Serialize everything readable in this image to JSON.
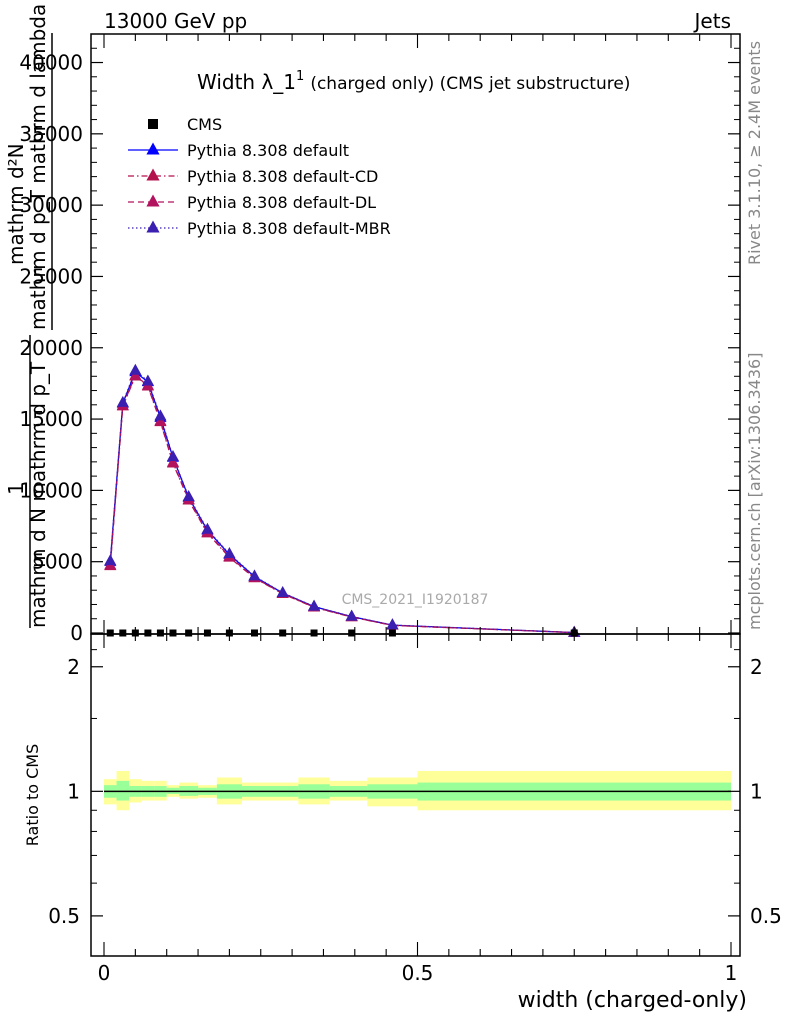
{
  "header": {
    "left": "13000 GeV pp",
    "right": "Jets"
  },
  "side_labels": {
    "rivet": "Rivet 3.1.10, ≥ 2.4M events",
    "mcplots": "mcplots.cern.ch [arXiv:1306.3436]"
  },
  "watermark": "CMS_2021_I1920187",
  "colors": {
    "cms": "#000000",
    "default": "#0000ff",
    "cd": "#b3124d",
    "dl": "#b3125e",
    "mbr": "#3a1fb0",
    "band_inner": "#99ff99",
    "band_outer": "#ffff99"
  },
  "chart_data": [
    {
      "type": "line",
      "title": "Width λ_1^1 (charged only) (CMS jet substructure)",
      "title_main": "Width λ_1",
      "title_sup": "1",
      "title_rest": "(charged only) (CMS jet substructure)",
      "ylabel_top": "mathrm d²N",
      "ylabel_bottom": "mathrm d p_T mathrm d lambda",
      "ylabel_one": "1",
      "ylabel_frac_bottom": "mathrm d N mathrm d p_T",
      "xlim": [
        0,
        1
      ],
      "ylim": [
        0,
        42000
      ],
      "y_ticks": [
        0,
        5000,
        10000,
        15000,
        20000,
        25000,
        30000,
        35000,
        40000
      ],
      "y_tick_labels": [
        "0",
        "5000",
        "10000",
        "15000",
        "20000",
        "25000",
        "30000",
        "35000",
        "40000"
      ],
      "legend": [
        {
          "name": "CMS",
          "marker": "square",
          "style": "none",
          "color_key": "cms"
        },
        {
          "name": "Pythia 8.308 default",
          "marker": "triangle",
          "style": "solid",
          "color_key": "default"
        },
        {
          "name": "Pythia 8.308 default-CD",
          "marker": "triangle",
          "style": "dashdot",
          "color_key": "cd"
        },
        {
          "name": "Pythia 8.308 default-DL",
          "marker": "triangle",
          "style": "dashed",
          "color_key": "dl"
        },
        {
          "name": "Pythia 8.308 default-MBR",
          "marker": "triangle",
          "style": "dotted",
          "color_key": "mbr"
        }
      ],
      "cms_x": [
        0.01,
        0.03,
        0.05,
        0.07,
        0.09,
        0.11,
        0.135,
        0.165,
        0.2,
        0.24,
        0.285,
        0.335,
        0.395,
        0.46,
        0.75
      ],
      "cms_y": [
        0,
        0,
        0,
        0,
        0,
        0,
        0,
        0,
        0,
        0,
        0,
        0,
        0,
        0,
        0
      ],
      "series": [
        {
          "name": "Pythia 8.308 default",
          "x": [
            0.01,
            0.03,
            0.05,
            0.07,
            0.09,
            0.11,
            0.135,
            0.165,
            0.2,
            0.24,
            0.285,
            0.335,
            0.395,
            0.46,
            0.75
          ],
          "y": [
            5000,
            16100,
            18300,
            17600,
            15100,
            12300,
            9500,
            7200,
            5500,
            3950,
            2800,
            1850,
            1150,
            550,
            30
          ]
        },
        {
          "name": "Pythia 8.308 default-CD",
          "x": [
            0.01,
            0.03,
            0.05,
            0.07,
            0.09,
            0.11,
            0.135,
            0.165,
            0.2,
            0.24,
            0.285,
            0.335,
            0.395,
            0.46,
            0.75
          ],
          "y": [
            4700,
            15900,
            18000,
            17300,
            14800,
            11900,
            9300,
            7000,
            5300,
            3850,
            2750,
            1800,
            1120,
            530,
            30
          ]
        },
        {
          "name": "Pythia 8.308 default-DL",
          "x": [
            0.01,
            0.03,
            0.05,
            0.07,
            0.09,
            0.11,
            0.135,
            0.165,
            0.2,
            0.24,
            0.285,
            0.335,
            0.395,
            0.46,
            0.75
          ],
          "y": [
            4750,
            15950,
            18050,
            17350,
            14850,
            11950,
            9350,
            7050,
            5350,
            3870,
            2770,
            1810,
            1130,
            535,
            30
          ]
        },
        {
          "name": "Pythia 8.308 default-MBR",
          "x": [
            0.01,
            0.03,
            0.05,
            0.07,
            0.09,
            0.11,
            0.135,
            0.165,
            0.2,
            0.24,
            0.285,
            0.335,
            0.395,
            0.46,
            0.75
          ],
          "y": [
            5050,
            16150,
            18400,
            17650,
            15200,
            12350,
            9550,
            7250,
            5550,
            3980,
            2820,
            1860,
            1160,
            555,
            30
          ]
        }
      ]
    },
    {
      "type": "area",
      "ylabel": "Ratio to CMS",
      "xlabel": "width (charged-only)",
      "xlim": [
        0,
        1
      ],
      "ylim": [
        0.4,
        2.4
      ],
      "y_scale": "log",
      "y_ticks": [
        0.5,
        1,
        2
      ],
      "y_tick_labels": [
        "0.5",
        "1",
        "2"
      ],
      "x_ticks": [
        0,
        0.5,
        1
      ],
      "x_tick_labels": [
        "0",
        "0.5",
        "1"
      ],
      "bins": [
        {
          "x0": 0.0,
          "x1": 0.02,
          "inner": [
            0.965,
            1.035
          ],
          "outer": [
            0.93,
            1.07
          ]
        },
        {
          "x0": 0.02,
          "x1": 0.04,
          "inner": [
            0.95,
            1.06
          ],
          "outer": [
            0.9,
            1.12
          ]
        },
        {
          "x0": 0.04,
          "x1": 0.06,
          "inner": [
            0.97,
            1.03
          ],
          "outer": [
            0.94,
            1.07
          ]
        },
        {
          "x0": 0.06,
          "x1": 0.08,
          "inner": [
            0.97,
            1.03
          ],
          "outer": [
            0.95,
            1.06
          ]
        },
        {
          "x0": 0.08,
          "x1": 0.1,
          "inner": [
            0.97,
            1.03
          ],
          "outer": [
            0.95,
            1.06
          ]
        },
        {
          "x0": 0.1,
          "x1": 0.12,
          "inner": [
            0.985,
            1.02
          ],
          "outer": [
            0.97,
            1.035
          ]
        },
        {
          "x0": 0.12,
          "x1": 0.15,
          "inner": [
            0.975,
            1.03
          ],
          "outer": [
            0.96,
            1.05
          ]
        },
        {
          "x0": 0.15,
          "x1": 0.18,
          "inner": [
            0.98,
            1.02
          ],
          "outer": [
            0.965,
            1.035
          ]
        },
        {
          "x0": 0.18,
          "x1": 0.22,
          "inner": [
            0.96,
            1.04
          ],
          "outer": [
            0.93,
            1.08
          ]
        },
        {
          "x0": 0.22,
          "x1": 0.26,
          "inner": [
            0.97,
            1.03
          ],
          "outer": [
            0.95,
            1.05
          ]
        },
        {
          "x0": 0.26,
          "x1": 0.31,
          "inner": [
            0.97,
            1.03
          ],
          "outer": [
            0.95,
            1.05
          ]
        },
        {
          "x0": 0.31,
          "x1": 0.36,
          "inner": [
            0.96,
            1.04
          ],
          "outer": [
            0.93,
            1.08
          ]
        },
        {
          "x0": 0.36,
          "x1": 0.42,
          "inner": [
            0.97,
            1.03
          ],
          "outer": [
            0.95,
            1.06
          ]
        },
        {
          "x0": 0.42,
          "x1": 0.5,
          "inner": [
            0.96,
            1.04
          ],
          "outer": [
            0.92,
            1.08
          ]
        },
        {
          "x0": 0.5,
          "x1": 1.0,
          "inner": [
            0.95,
            1.05
          ],
          "outer": [
            0.9,
            1.12
          ]
        }
      ],
      "reference_line": 1
    }
  ]
}
